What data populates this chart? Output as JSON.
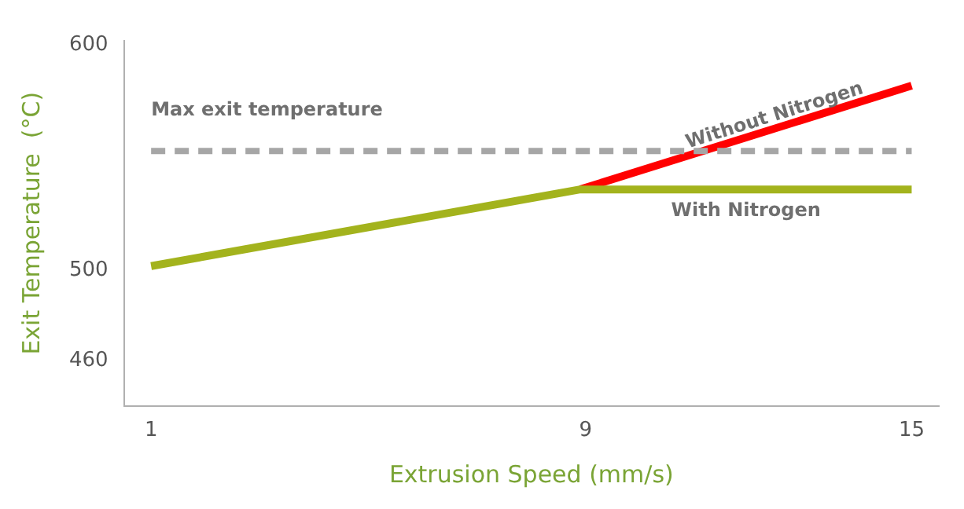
{
  "chart_data": {
    "type": "line",
    "xlabel": "Extrusion Speed (mm/s)",
    "ylabel": "Exit Temperature  (°C)",
    "series": [
      {
        "name": "Without Nitrogen",
        "color": "#ff0000",
        "x": [
          8.9,
          15
        ],
        "values": [
          536,
          582
        ]
      },
      {
        "name": "With Nitrogen",
        "color": "#a3b31d",
        "x": [
          1,
          8.9,
          15
        ],
        "values": [
          502,
          536,
          536
        ]
      }
    ],
    "xlim": [
      0.5,
      15.5
    ],
    "xticks": [
      1,
      9,
      15
    ],
    "ylim": [
      440,
      602
    ],
    "yticks": [
      460,
      500,
      600
    ],
    "ref_lines": [
      {
        "axis": "y",
        "value": 553,
        "label": "Max exit temperature",
        "color": "#a6a6a6",
        "line_style": "dashed"
      }
    ],
    "grid": false,
    "legend": false,
    "marker": "none",
    "line_style": "solid"
  }
}
